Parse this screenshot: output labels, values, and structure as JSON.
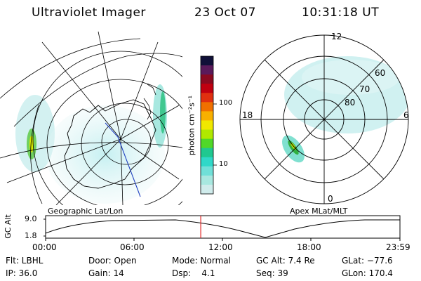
{
  "header": {
    "title": "Ultraviolet Imager",
    "date": "23 Oct 07",
    "time": "10:31:18 UT"
  },
  "geo_panel": {
    "caption": "Geographic Lat/Lon"
  },
  "polar_panel": {
    "caption": "Apex MLat/MLT",
    "mlt_labels": {
      "top": "12",
      "left": "18",
      "right": "6",
      "bottom": "0"
    },
    "lat_labels": [
      "60",
      "70",
      "80"
    ]
  },
  "colorbar": {
    "unit_label": "photon cm⁻²s⁻¹",
    "ticks": [
      "100",
      "10"
    ],
    "colors": [
      "#101038",
      "#5a1a5a",
      "#8a0a20",
      "#c00010",
      "#e03010",
      "#f07000",
      "#f8b000",
      "#f0e800",
      "#b0e800",
      "#50d828",
      "#20c890",
      "#30d8c8",
      "#70e0d8",
      "#a8e8e0",
      "#d0ecec"
    ]
  },
  "timeline": {
    "ylabel": "GC Alt",
    "y_ticks": [
      "9.0",
      "1.8"
    ],
    "x_ticks": [
      "00:00",
      "06:00",
      "12:00",
      "18:00",
      "23:59"
    ],
    "cursor_fraction": 0.4378
  },
  "info": {
    "rows": [
      [
        "Flt: LBHL",
        "Door: Open",
        "Mode: Normal",
        "GC Alt: 7.4 Re",
        "GLat: −77.6"
      ],
      [
        "IP: 36.0",
        "Gain: 14",
        "Dsp:    4.1",
        "Seq: 39",
        "GLon: 170.4"
      ]
    ]
  }
}
